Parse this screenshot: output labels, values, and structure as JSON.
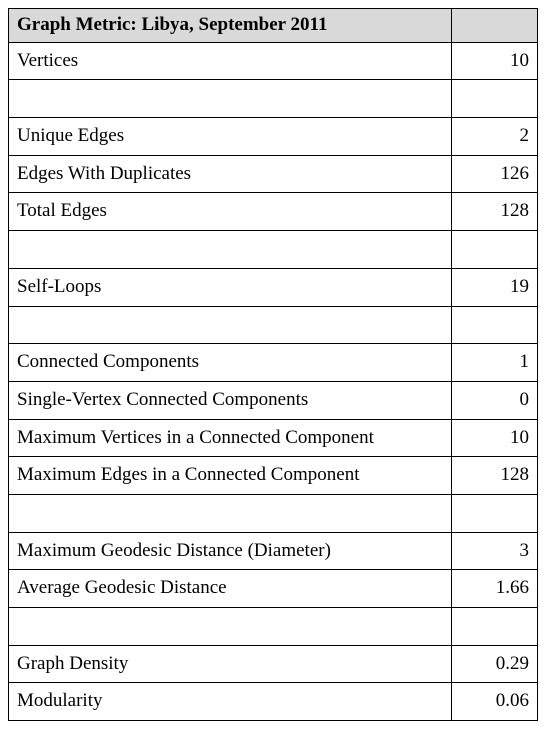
{
  "table": {
    "header_label": "Graph Metric: Libya, September 2011",
    "header_value": "",
    "colors": {
      "header_bg": "#d9d9d9",
      "border": "#000000",
      "background": "#ffffff",
      "text": "#000000"
    },
    "fontsize": 19,
    "rows": [
      {
        "type": "data",
        "label": "Vertices",
        "value": "10"
      },
      {
        "type": "spacer"
      },
      {
        "type": "data",
        "label": "Unique Edges",
        "value": "2"
      },
      {
        "type": "data",
        "label": "Edges With Duplicates",
        "value": "126"
      },
      {
        "type": "data",
        "label": "Total Edges",
        "value": "128"
      },
      {
        "type": "spacer"
      },
      {
        "type": "data",
        "label": "Self-Loops",
        "value": "19"
      },
      {
        "type": "spacer"
      },
      {
        "type": "data",
        "label": "Connected Components",
        "value": "1"
      },
      {
        "type": "data",
        "label": "Single-Vertex Connected Components",
        "value": "0"
      },
      {
        "type": "data",
        "label": "Maximum Vertices in a Connected Component",
        "value": "10"
      },
      {
        "type": "data",
        "label": "Maximum Edges in a Connected Component",
        "value": "128"
      },
      {
        "type": "spacer"
      },
      {
        "type": "data",
        "label": "Maximum Geodesic Distance (Diameter)",
        "value": "3"
      },
      {
        "type": "data",
        "label": "Average Geodesic Distance",
        "value": "1.66"
      },
      {
        "type": "spacer"
      },
      {
        "type": "data",
        "label": "Graph Density",
        "value": "0.29"
      },
      {
        "type": "data",
        "label": "Modularity",
        "value": "0.06"
      }
    ]
  }
}
